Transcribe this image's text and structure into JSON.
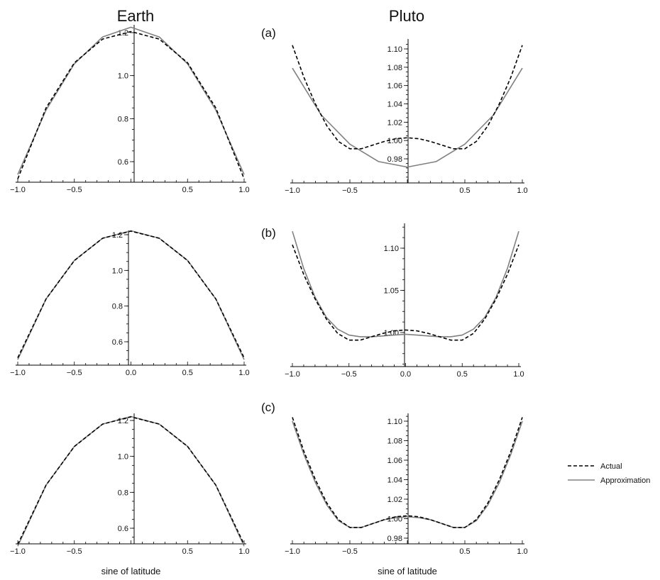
{
  "titles": {
    "left": "Earth",
    "right": "Pluto"
  },
  "legend": {
    "actual": "Actual",
    "approx": "Approximation"
  },
  "colors": {
    "actual": "#000000",
    "approx": "#808080",
    "axis": "#000000"
  },
  "xlabel": "sine of latitude",
  "chart_data": [
    {
      "type": "line",
      "planet": "Earth",
      "row": 1,
      "panel_label": "",
      "xlim": [
        -1,
        1
      ],
      "ylim": [
        0.5,
        1.25
      ],
      "x_ticks": [
        -1.0,
        -0.5,
        0.5,
        1.0
      ],
      "x_tick_labels": [
        "-1.0",
        "-0.5",
        "0.5",
        "1.0"
      ],
      "y_ticks": [
        0.6,
        0.8,
        1.0,
        1.2
      ],
      "y_tick_labels": [
        "0.6",
        "0.8",
        "1.0",
        "1.2"
      ],
      "xlabel": "",
      "series": [
        {
          "name": "Actual",
          "style": "dashed",
          "x": [
            -1,
            -0.75,
            -0.5,
            -0.25,
            0,
            0.25,
            0.5,
            0.75,
            1
          ],
          "y": [
            0.52,
            0.85,
            1.06,
            1.17,
            1.205,
            1.17,
            1.06,
            0.85,
            0.52
          ]
        },
        {
          "name": "Approximation",
          "style": "solid",
          "x": [
            -1,
            -0.75,
            -0.5,
            -0.25,
            0,
            0.25,
            0.5,
            0.75,
            1
          ],
          "y": [
            0.54,
            0.84,
            1.055,
            1.18,
            1.225,
            1.18,
            1.055,
            0.84,
            0.54
          ]
        }
      ]
    },
    {
      "type": "line",
      "planet": "Pluto",
      "row": 1,
      "panel_label": "(a)",
      "xlim": [
        -1,
        1
      ],
      "ylim": [
        0.965,
        1.11
      ],
      "x_ticks": [
        -1.0,
        -0.5,
        0.5,
        1.0
      ],
      "x_tick_labels": [
        "-1.0",
        "-0.5",
        "0.5",
        "1.0"
      ],
      "y_ticks": [
        0.98,
        1.0,
        1.02,
        1.04,
        1.06,
        1.08,
        1.1
      ],
      "y_tick_labels": [
        "0.98",
        "1.00",
        "1.02",
        "1.04",
        "1.06",
        "1.08",
        "1.10"
      ],
      "xlabel": "",
      "series": [
        {
          "name": "Actual",
          "style": "dashed",
          "x": [
            -1,
            -0.9,
            -0.8,
            -0.7,
            -0.6,
            -0.5,
            -0.4,
            -0.3,
            -0.2,
            -0.1,
            0,
            0.1,
            0.2,
            0.3,
            0.4,
            0.5,
            0.6,
            0.7,
            0.8,
            0.9,
            1
          ],
          "y": [
            1.104,
            1.069,
            1.04,
            1.016,
            0.999,
            0.991,
            0.991,
            0.995,
            0.999,
            1.002,
            1.003,
            1.002,
            0.999,
            0.995,
            0.991,
            0.991,
            0.999,
            1.016,
            1.04,
            1.069,
            1.104
          ]
        },
        {
          "name": "Approximation",
          "style": "solid",
          "x": [
            -1,
            -0.75,
            -0.5,
            -0.25,
            0,
            0.25,
            0.5,
            0.75,
            1
          ],
          "y": [
            1.079,
            1.028,
            0.996,
            0.977,
            0.971,
            0.977,
            0.996,
            1.028,
            1.079
          ]
        }
      ]
    },
    {
      "type": "line",
      "planet": "Earth",
      "row": 2,
      "panel_label": "",
      "xlim": [
        -1,
        1
      ],
      "ylim": [
        0.48,
        1.25
      ],
      "x_ticks": [
        -1.0,
        -0.5,
        0.0,
        0.5,
        1.0
      ],
      "x_tick_labels": [
        "-1.0",
        "-0.5",
        "0.0",
        "0.5",
        "1.0"
      ],
      "y_ticks": [
        0.6,
        0.8,
        1.0,
        1.2
      ],
      "y_tick_labels": [
        "0.6",
        "0.8",
        "1.0",
        "1.2"
      ],
      "xlabel": "",
      "series": [
        {
          "name": "Actual",
          "style": "dashed",
          "x": [
            -1,
            -0.75,
            -0.5,
            -0.25,
            0,
            0.25,
            0.5,
            0.75,
            1
          ],
          "y": [
            0.51,
            0.84,
            1.055,
            1.18,
            1.22,
            1.18,
            1.055,
            0.84,
            0.51
          ]
        },
        {
          "name": "Approximation",
          "style": "solid",
          "x": [
            -1,
            -0.75,
            -0.5,
            -0.25,
            0,
            0.25,
            0.5,
            0.75,
            1
          ],
          "y": [
            0.5,
            0.84,
            1.056,
            1.18,
            1.222,
            1.18,
            1.056,
            0.84,
            0.5
          ]
        }
      ]
    },
    {
      "type": "line",
      "planet": "Pluto",
      "row": 2,
      "panel_label": "(b)",
      "xlim": [
        -1,
        1
      ],
      "ylim": [
        0.965,
        1.125
      ],
      "x_ticks": [
        -1.0,
        -0.5,
        0.0,
        0.5,
        1.0
      ],
      "x_tick_labels": [
        "-1.0",
        "-0.5",
        "0.0",
        "0.5",
        "1.0"
      ],
      "y_ticks": [
        1.0,
        1.05,
        1.1
      ],
      "y_tick_labels": [
        "1.00",
        "1.05",
        "1.10"
      ],
      "xlabel": "",
      "series": [
        {
          "name": "Actual",
          "style": "dashed",
          "x": [
            -1,
            -0.9,
            -0.8,
            -0.7,
            -0.6,
            -0.5,
            -0.4,
            -0.3,
            -0.2,
            -0.1,
            0,
            0.1,
            0.2,
            0.3,
            0.4,
            0.5,
            0.6,
            0.7,
            0.8,
            0.9,
            1
          ],
          "y": [
            1.104,
            1.069,
            1.04,
            1.016,
            0.999,
            0.991,
            0.991,
            0.995,
            0.999,
            1.002,
            1.003,
            1.002,
            0.999,
            0.995,
            0.991,
            0.991,
            0.999,
            1.016,
            1.04,
            1.069,
            1.104
          ]
        },
        {
          "name": "Approximation",
          "style": "solid",
          "x": [
            -1,
            -0.9,
            -0.8,
            -0.7,
            -0.6,
            -0.5,
            -0.4,
            -0.3,
            -0.2,
            -0.1,
            0,
            0.1,
            0.2,
            0.3,
            0.4,
            0.5,
            0.6,
            0.7,
            0.8,
            0.9,
            1
          ],
          "y": [
            1.12,
            1.076,
            1.042,
            1.018,
            1.004,
            0.997,
            0.995,
            0.995,
            0.996,
            0.997,
            0.998,
            0.997,
            0.996,
            0.995,
            0.995,
            0.997,
            1.004,
            1.018,
            1.042,
            1.076,
            1.12
          ]
        }
      ]
    },
    {
      "type": "line",
      "planet": "Earth",
      "row": 3,
      "panel_label": "",
      "xlim": [
        -1,
        1
      ],
      "ylim": [
        0.48,
        1.25
      ],
      "x_ticks": [
        -1.0,
        -0.5,
        0.5,
        1.0
      ],
      "x_tick_labels": [
        "-1.0",
        "-0.5",
        "0.5",
        "1.0"
      ],
      "y_ticks": [
        0.6,
        0.8,
        1.0,
        1.2
      ],
      "y_tick_labels": [
        "0.6",
        "0.8",
        "1.0",
        "1.2"
      ],
      "xlabel": "sine of latitude",
      "series": [
        {
          "name": "Actual",
          "style": "dashed",
          "x": [
            -1,
            -0.75,
            -0.5,
            -0.25,
            0,
            0.25,
            0.5,
            0.75,
            1
          ],
          "y": [
            0.51,
            0.84,
            1.055,
            1.18,
            1.22,
            1.18,
            1.055,
            0.84,
            0.51
          ]
        },
        {
          "name": "Approximation",
          "style": "solid",
          "x": [
            -1,
            -0.75,
            -0.5,
            -0.25,
            0,
            0.25,
            0.5,
            0.75,
            1
          ],
          "y": [
            0.5,
            0.84,
            1.056,
            1.18,
            1.222,
            1.18,
            1.056,
            0.84,
            0.5
          ]
        }
      ]
    },
    {
      "type": "line",
      "planet": "Pluto",
      "row": 3,
      "panel_label": "(c)",
      "xlim": [
        -1,
        1
      ],
      "ylim": [
        0.965,
        1.11
      ],
      "x_ticks": [
        -1.0,
        -0.5,
        0.5,
        1.0
      ],
      "x_tick_labels": [
        "-1.0",
        "-0.5",
        "0.5",
        "1.0"
      ],
      "y_ticks": [
        0.98,
        1.0,
        1.02,
        1.04,
        1.06,
        1.08,
        1.1
      ],
      "y_tick_labels": [
        "0.98",
        "1.00",
        "1.02",
        "1.04",
        "1.06",
        "1.08",
        "1.10"
      ],
      "xlabel": "sine of latitude",
      "series": [
        {
          "name": "Actual",
          "style": "dashed",
          "x": [
            -1,
            -0.9,
            -0.8,
            -0.7,
            -0.6,
            -0.5,
            -0.4,
            -0.3,
            -0.2,
            -0.1,
            0,
            0.1,
            0.2,
            0.3,
            0.4,
            0.5,
            0.6,
            0.7,
            0.8,
            0.9,
            1
          ],
          "y": [
            1.104,
            1.069,
            1.04,
            1.016,
            0.999,
            0.991,
            0.991,
            0.995,
            0.999,
            1.002,
            1.003,
            1.002,
            0.999,
            0.995,
            0.991,
            0.991,
            0.999,
            1.016,
            1.04,
            1.069,
            1.104
          ]
        },
        {
          "name": "Approximation",
          "style": "solid",
          "x": [
            -1,
            -0.9,
            -0.8,
            -0.7,
            -0.6,
            -0.5,
            -0.4,
            -0.3,
            -0.2,
            -0.1,
            0,
            0.1,
            0.2,
            0.3,
            0.4,
            0.5,
            0.6,
            0.7,
            0.8,
            0.9,
            1
          ],
          "y": [
            1.1,
            1.066,
            1.037,
            1.014,
            0.998,
            0.991,
            0.991,
            0.995,
            0.999,
            1.001,
            1.002,
            1.001,
            0.999,
            0.995,
            0.991,
            0.991,
            0.998,
            1.014,
            1.037,
            1.066,
            1.1
          ]
        }
      ]
    }
  ]
}
